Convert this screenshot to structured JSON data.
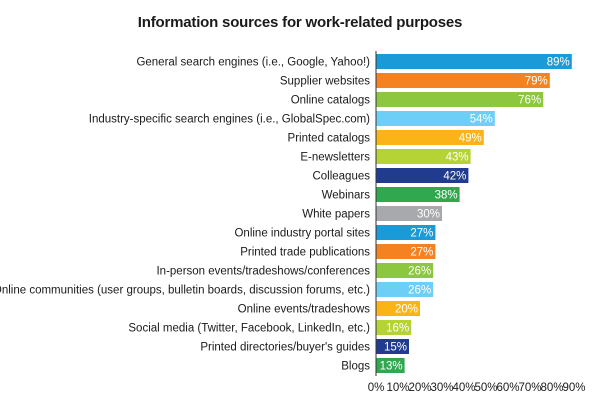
{
  "chart_data": {
    "type": "bar",
    "orientation": "horizontal",
    "title": "Information sources for work-related purposes",
    "xlabel": "",
    "ylabel": "",
    "xlim": [
      0,
      90
    ],
    "grid": false,
    "legend": "none",
    "x_ticks": [
      "0%",
      "10%",
      "20%",
      "30%",
      "40%",
      "50%",
      "60%",
      "70%",
      "80%",
      "90%"
    ],
    "categories": [
      "General search engines (i.e., Google, Yahoo!)",
      "Supplier websites",
      "Online catalogs",
      "Industry-specific search engines (i.e., GlobalSpec.com)",
      "Printed catalogs",
      "E-newsletters",
      "Colleagues",
      "Webinars",
      "White papers",
      "Online industry portal sites",
      "Printed trade publications",
      "In-person events/tradeshows/conferences",
      "Online communities (user groups, bulletin boards, discussion forums, etc.)",
      "Online events/tradeshows",
      "Social media (Twitter, Facebook, LinkedIn, etc.)",
      "Printed directories/buyer's guides",
      "Blogs"
    ],
    "values": [
      89,
      79,
      76,
      54,
      49,
      43,
      42,
      38,
      30,
      27,
      27,
      26,
      26,
      20,
      16,
      15,
      13
    ],
    "value_labels": [
      "89%",
      "79%",
      "76%",
      "54%",
      "49%",
      "43%",
      "42%",
      "38%",
      "30%",
      "27%",
      "27%",
      "26%",
      "26%",
      "20%",
      "16%",
      "15%",
      "13%"
    ],
    "colors": [
      "#1a9ad6",
      "#f58220",
      "#8dc63f",
      "#6dcff6",
      "#fbb416",
      "#b5d334",
      "#213b8f",
      "#2fa84f",
      "#a7a9ac",
      "#1a9ad6",
      "#f58220",
      "#8dc63f",
      "#6dcff6",
      "#fbb416",
      "#b5d334",
      "#213b8f",
      "#2fa84f"
    ]
  }
}
